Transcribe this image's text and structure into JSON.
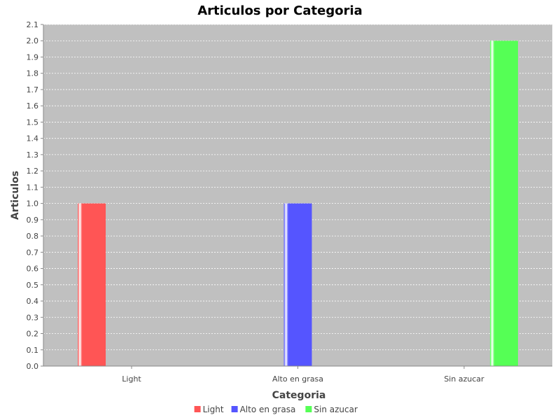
{
  "chart_data": {
    "type": "bar",
    "title": "Articulos por Categoria",
    "xlabel": "Categoria",
    "ylabel": "Articulos",
    "categories": [
      "Light",
      "Alto en grasa",
      "Sin azucar"
    ],
    "series": [
      {
        "name": "Light",
        "values": [
          1.0,
          null,
          null
        ],
        "color": "#ff5555"
      },
      {
        "name": "Alto en grasa",
        "values": [
          null,
          1.0,
          null
        ],
        "color": "#5555ff"
      },
      {
        "name": "Sin azucar",
        "values": [
          null,
          null,
          2.0
        ],
        "color": "#55ff55"
      }
    ],
    "ylim": [
      0,
      2.1
    ],
    "yticks": [
      "0.0",
      "0.1",
      "0.2",
      "0.3",
      "0.4",
      "0.5",
      "0.6",
      "0.7",
      "0.8",
      "0.9",
      "1.0",
      "1.1",
      "1.2",
      "1.3",
      "1.4",
      "1.5",
      "1.6",
      "1.7",
      "1.8",
      "1.9",
      "2.0",
      "2.1"
    ],
    "grid": true,
    "legend_position": "bottom",
    "plot_background": "#c0c0c0"
  }
}
